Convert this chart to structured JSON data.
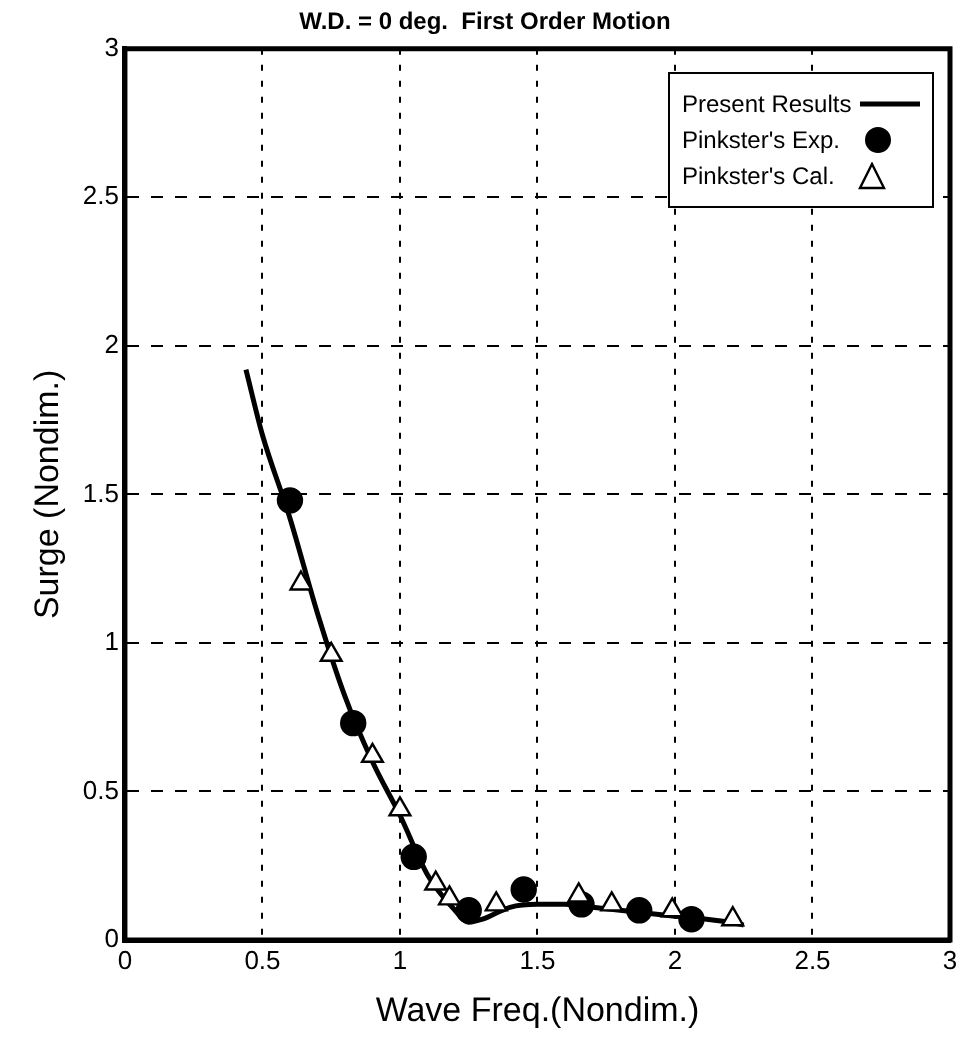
{
  "chart_data": {
    "type": "line",
    "title": "W.D. = 0 deg.  First Order Motion",
    "xlabel": "Wave Freq.(Nondim.)",
    "ylabel": "Surge (Nondim.)",
    "xlim": [
      0,
      3
    ],
    "ylim": [
      0,
      3
    ],
    "xticks": [
      0,
      0.5,
      1,
      1.5,
      2,
      2.5,
      3
    ],
    "yticks": [
      0,
      0.5,
      1,
      1.5,
      2,
      2.5,
      3
    ],
    "grid": true,
    "legend": "top right",
    "series": [
      {
        "name": "Present Results",
        "type": "line",
        "marker": "none",
        "color": "#000000",
        "x": [
          0.44,
          0.5,
          0.6,
          0.7,
          0.8,
          0.9,
          1.0,
          1.1,
          1.2,
          1.25,
          1.3,
          1.4,
          1.5,
          1.6,
          1.7,
          1.8,
          2.0,
          2.2,
          2.25
        ],
        "values": [
          1.92,
          1.7,
          1.42,
          1.1,
          0.82,
          0.6,
          0.42,
          0.22,
          0.1,
          0.06,
          0.07,
          0.11,
          0.12,
          0.12,
          0.11,
          0.1,
          0.08,
          0.06,
          0.05
        ]
      },
      {
        "name": "Pinkster's Exp.",
        "type": "scatter",
        "marker": "circle",
        "color": "#000000",
        "x": [
          0.6,
          0.83,
          1.05,
          1.25,
          1.45,
          1.66,
          1.87,
          2.06
        ],
        "values": [
          1.48,
          0.73,
          0.28,
          0.1,
          0.17,
          0.12,
          0.1,
          0.07
        ]
      },
      {
        "name": "Pinkster's Cal.",
        "type": "scatter",
        "marker": "triangle",
        "color": "#000000",
        "x": [
          0.64,
          0.75,
          0.9,
          1.0,
          1.13,
          1.18,
          1.35,
          1.65,
          1.77,
          1.99,
          2.21
        ],
        "values": [
          1.2,
          0.96,
          0.62,
          0.44,
          0.19,
          0.14,
          0.12,
          0.15,
          0.12,
          0.1,
          0.07
        ]
      }
    ]
  }
}
